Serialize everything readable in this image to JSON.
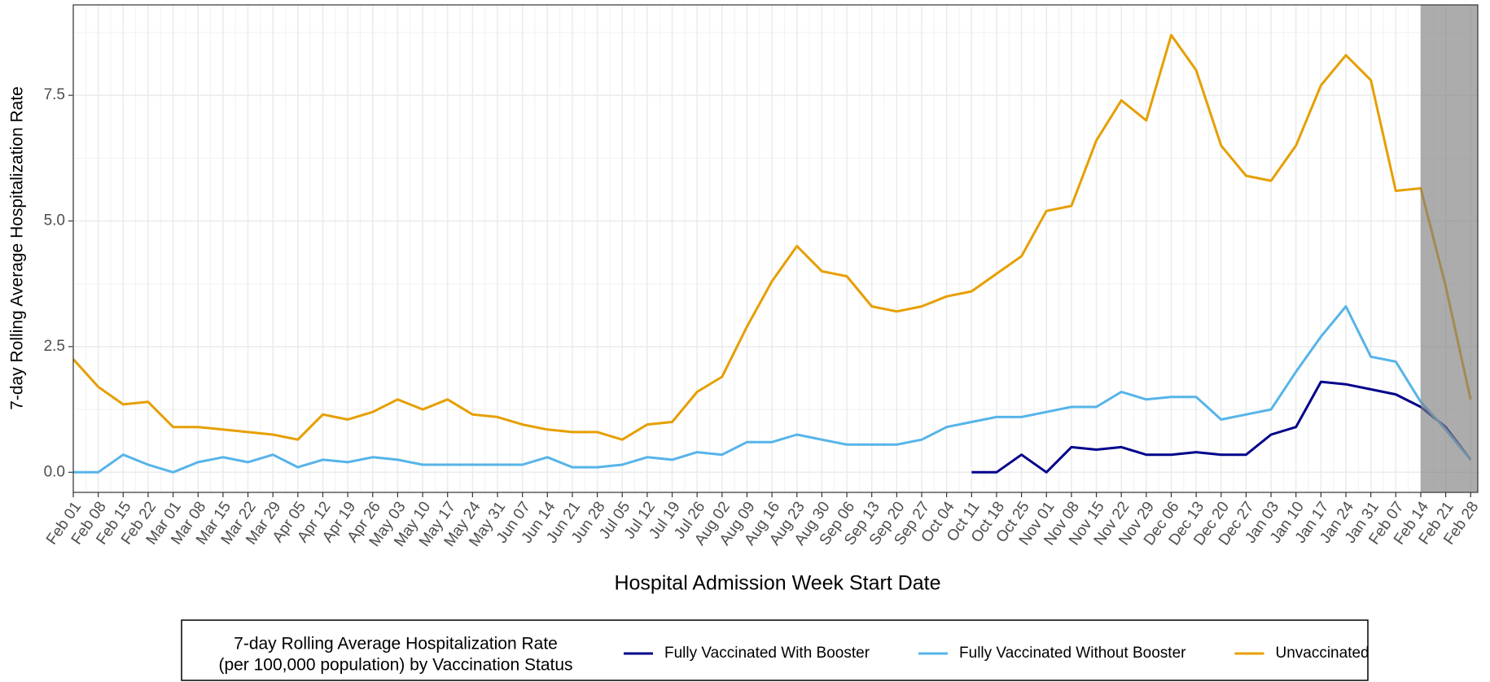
{
  "chart_data": {
    "type": "line",
    "xlabel": "Hospital Admission Week Start Date",
    "ylabel": "7-day Rolling Average Hospitalization Rate",
    "legend_title": [
      "7-day Rolling Average Hospitalization Rate",
      "(per 100,000 population) by Vaccination Status"
    ],
    "legend_position": "bottom",
    "grid": true,
    "xlim": [
      0,
      394
    ],
    "ylim": [
      -0.4,
      9.3
    ],
    "yticks": [
      {
        "value": 0,
        "label": "0.0"
      },
      2.5,
      {
        "value": 5,
        "label": "5.0"
      },
      7.5
    ],
    "xticks": [
      {
        "value": 0,
        "label": "Feb 01"
      },
      {
        "value": 7,
        "label": "Feb 08"
      },
      {
        "value": 14,
        "label": "Feb 15"
      },
      {
        "value": 21,
        "label": "Feb 22"
      },
      {
        "value": 28,
        "label": "Mar 01"
      },
      {
        "value": 35,
        "label": "Mar 08"
      },
      {
        "value": 42,
        "label": "Mar 15"
      },
      {
        "value": 49,
        "label": "Mar 22"
      },
      {
        "value": 56,
        "label": "Mar 29"
      },
      {
        "value": 63,
        "label": "Apr 05"
      },
      {
        "value": 70,
        "label": "Apr 12"
      },
      {
        "value": 77,
        "label": "Apr 19"
      },
      {
        "value": 84,
        "label": "Apr 26"
      },
      {
        "value": 91,
        "label": "May 03"
      },
      {
        "value": 98,
        "label": "May 10"
      },
      {
        "value": 105,
        "label": "May 17"
      },
      {
        "value": 112,
        "label": "May 24"
      },
      {
        "value": 119,
        "label": "May 31"
      },
      {
        "value": 126,
        "label": "Jun 07"
      },
      {
        "value": 133,
        "label": "Jun 14"
      },
      {
        "value": 140,
        "label": "Jun 21"
      },
      {
        "value": 147,
        "label": "Jun 28"
      },
      {
        "value": 154,
        "label": "Jul 05"
      },
      {
        "value": 161,
        "label": "Jul 12"
      },
      {
        "value": 168,
        "label": "Jul 19"
      },
      {
        "value": 175,
        "label": "Jul 26"
      },
      {
        "value": 182,
        "label": "Aug 02"
      },
      {
        "value": 189,
        "label": "Aug 09"
      },
      {
        "value": 196,
        "label": "Aug 16"
      },
      {
        "value": 203,
        "label": "Aug 23"
      },
      {
        "value": 210,
        "label": "Aug 30"
      },
      {
        "value": 217,
        "label": "Sep 06"
      },
      {
        "value": 224,
        "label": "Sep 13"
      },
      {
        "value": 231,
        "label": "Sep 20"
      },
      {
        "value": 238,
        "label": "Sep 27"
      },
      {
        "value": 245,
        "label": "Oct 04"
      },
      {
        "value": 252,
        "label": "Oct 11"
      },
      {
        "value": 259,
        "label": "Oct 18"
      },
      {
        "value": 266,
        "label": "Oct 25"
      },
      {
        "value": 273,
        "label": "Nov 01"
      },
      {
        "value": 280,
        "label": "Nov 08"
      },
      {
        "value": 287,
        "label": "Nov 15"
      },
      {
        "value": 294,
        "label": "Nov 22"
      },
      {
        "value": 301,
        "label": "Nov 29"
      },
      {
        "value": 308,
        "label": "Dec 06"
      },
      {
        "value": 315,
        "label": "Dec 13"
      },
      {
        "value": 322,
        "label": "Dec 20"
      },
      {
        "value": 329,
        "label": "Dec 27"
      },
      {
        "value": 336,
        "label": "Jan 03"
      },
      {
        "value": 343,
        "label": "Jan 10"
      },
      {
        "value": 350,
        "label": "Jan 17"
      },
      {
        "value": 357,
        "label": "Jan 24"
      },
      {
        "value": 364,
        "label": "Jan 31"
      },
      {
        "value": 371,
        "label": "Feb 07"
      },
      {
        "value": 378,
        "label": "Feb 14"
      },
      {
        "value": 385,
        "label": "Feb 21"
      },
      {
        "value": 392,
        "label": "Feb 28"
      }
    ],
    "shaded_region": {
      "from": 378,
      "to": 394,
      "color": "#7f7f7f"
    },
    "x": [
      0,
      7,
      14,
      21,
      28,
      35,
      42,
      49,
      56,
      63,
      70,
      77,
      84,
      91,
      98,
      105,
      112,
      119,
      126,
      133,
      140,
      147,
      154,
      161,
      168,
      175,
      182,
      189,
      196,
      203,
      210,
      217,
      224,
      231,
      238,
      245,
      252,
      259,
      266,
      273,
      280,
      287,
      294,
      301,
      308,
      315,
      322,
      329,
      336,
      343,
      350,
      357,
      364,
      371,
      378,
      385,
      392
    ],
    "series": [
      {
        "name": "Fully Vaccinated With Booster",
        "color": "#00008b",
        "values": [
          null,
          null,
          null,
          null,
          null,
          null,
          null,
          null,
          null,
          null,
          null,
          null,
          null,
          null,
          null,
          null,
          null,
          null,
          null,
          null,
          null,
          null,
          null,
          null,
          null,
          null,
          null,
          null,
          null,
          null,
          null,
          null,
          null,
          null,
          null,
          null,
          0,
          0,
          0.35,
          0,
          0.5,
          0.45,
          0.5,
          0.35,
          0.35,
          0.4,
          0.35,
          0.35,
          0.75,
          0.9,
          1.8,
          1.75,
          1.65,
          1.55,
          1.3,
          0.9,
          0.25
        ]
      },
      {
        "name": "Fully Vaccinated Without Booster",
        "color": "#56b4e9",
        "values": [
          0,
          0,
          0.35,
          0.15,
          0,
          0.2,
          0.3,
          0.2,
          0.35,
          0.1,
          0.25,
          0.2,
          0.3,
          0.25,
          0.15,
          0.15,
          0.15,
          0.15,
          0.15,
          0.3,
          0.1,
          0.1,
          0.15,
          0.3,
          0.25,
          0.4,
          0.35,
          0.6,
          0.6,
          0.75,
          0.65,
          0.55,
          0.55,
          0.55,
          0.65,
          0.9,
          1.0,
          1.1,
          1.1,
          1.2,
          1.3,
          1.3,
          1.6,
          1.45,
          1.5,
          1.5,
          1.05,
          1.15,
          1.25,
          2.0,
          2.7,
          3.3,
          2.3,
          2.2,
          1.4,
          0.85,
          0.25
        ]
      },
      {
        "name": "Unvaccinated",
        "color": "#e69f00",
        "values": [
          2.25,
          1.7,
          1.35,
          1.4,
          0.9,
          0.9,
          0.85,
          0.8,
          0.75,
          0.65,
          1.15,
          1.05,
          1.2,
          1.45,
          1.25,
          1.45,
          1.15,
          1.1,
          0.95,
          0.85,
          0.8,
          0.8,
          0.65,
          0.95,
          1.0,
          1.6,
          1.9,
          2.9,
          3.8,
          4.5,
          4.0,
          3.9,
          3.3,
          3.2,
          3.3,
          3.5,
          3.6,
          3.95,
          4.3,
          5.2,
          5.3,
          6.6,
          7.4,
          7.0,
          8.7,
          8.0,
          6.5,
          5.9,
          5.8,
          6.5,
          7.7,
          8.3,
          7.8,
          5.6,
          5.65,
          3.7,
          1.45
        ]
      }
    ]
  }
}
